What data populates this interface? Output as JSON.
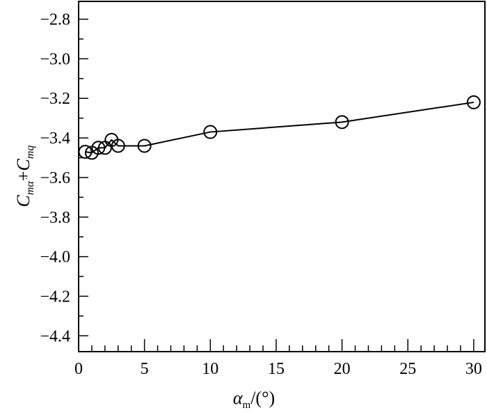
{
  "chart_data": {
    "type": "line",
    "title": "",
    "xlabel": "α_m/(°)",
    "xlabel_main": "α",
    "xlabel_sub": "m",
    "xlabel_unit": "/(°)",
    "ylabel": "C_mα̇ + C_mq",
    "ylabel_parts": {
      "c1": "C",
      "s1": "mα̇",
      "plus": "+",
      "c2": "C",
      "s2": "mq"
    },
    "xlim": [
      0,
      30.85
    ],
    "ylim": [
      -4.48,
      -2.71
    ],
    "xticks": [
      0,
      5,
      10,
      15,
      20,
      25,
      30
    ],
    "xtick_labels": [
      "0",
      "5",
      "10",
      "15",
      "20",
      "25",
      "30"
    ],
    "yticks": [
      -2.8,
      -3.0,
      -3.2,
      -3.4,
      -3.6,
      -3.8,
      -4.0,
      -4.2,
      -4.4
    ],
    "ytick_labels": [
      "−2.8",
      "−3.0",
      "−3.2",
      "−3.4",
      "−3.6",
      "−3.8",
      "−4.0",
      "−4.2",
      "−4.4"
    ],
    "grid": false,
    "series": [
      {
        "name": "Cmα̇+Cmq",
        "marker": "open-circle",
        "color": "#000000",
        "x": [
          0.5,
          1,
          1.5,
          2,
          2.5,
          3,
          5,
          10,
          20,
          30
        ],
        "y": [
          -3.47,
          -3.475,
          -3.45,
          -3.45,
          -3.41,
          -3.44,
          -3.44,
          -3.37,
          -3.32,
          -3.22
        ]
      }
    ]
  }
}
